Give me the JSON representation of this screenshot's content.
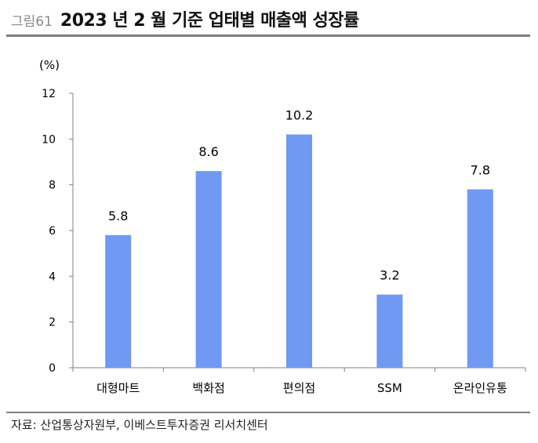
{
  "header": {
    "figure_number": "그림61",
    "title": "2023 년 2 월 기준 업태별 매출액 성장률"
  },
  "source": "자료: 산업통상자원부, 이베스트투자증권 리서치센터",
  "colors": {
    "bar": "#6f99f2",
    "axis": "#808080",
    "rule": "#7f7f7f"
  },
  "chart_data": {
    "type": "bar",
    "title": "2023 년 2 월 기준 업태별 매출액 성장률",
    "ylabel": "(%)",
    "xlabel": "",
    "ylim": [
      0,
      12
    ],
    "yticks": [
      0,
      2,
      4,
      6,
      8,
      10,
      12
    ],
    "categories": [
      "대형마트",
      "백화점",
      "편의점",
      "SSM",
      "온라인유통"
    ],
    "values": [
      5.8,
      8.6,
      10.2,
      3.2,
      7.8
    ],
    "data_labels": [
      "5.8",
      "8.6",
      "10.2",
      "3.2",
      "7.8"
    ],
    "grid": false,
    "legend": "none"
  }
}
